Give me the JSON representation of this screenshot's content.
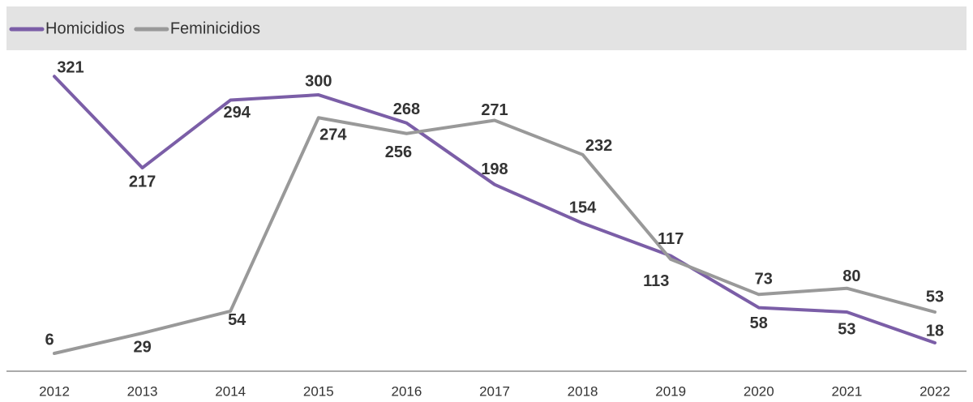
{
  "chart_data": {
    "type": "line",
    "x": [
      2012,
      2013,
      2014,
      2015,
      2016,
      2017,
      2018,
      2019,
      2020,
      2021,
      2022
    ],
    "series": [
      {
        "name": "Homicidios",
        "color": "#7b5ea7",
        "values": [
          321,
          217,
          294,
          300,
          268,
          198,
          154,
          117,
          58,
          53,
          18
        ]
      },
      {
        "name": "Feminicidios",
        "color": "#999999",
        "values": [
          6,
          29,
          54,
          274,
          256,
          271,
          232,
          113,
          73,
          80,
          53
        ]
      }
    ],
    "ylim": [
      0,
      330
    ],
    "legend": "top-left"
  }
}
